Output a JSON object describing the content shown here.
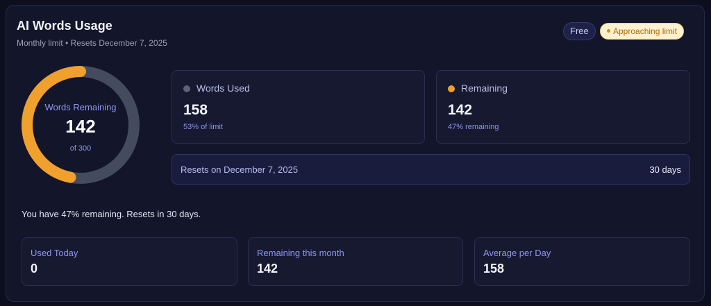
{
  "header": {
    "title": "AI Words Usage",
    "subtitle": "Monthly limit • Resets December 7, 2025",
    "plan_badge": "Free",
    "status_badge": "Approaching limit"
  },
  "ring": {
    "label": "Words Remaining",
    "value": "142",
    "of_text": "of 300",
    "remaining_fraction": 0.47,
    "remaining_color": "#f0a02c",
    "used_color": "#454b5f"
  },
  "words_used": {
    "label": "Words Used",
    "value": "158",
    "hint": "53% of limit",
    "dot_color": "#5d6376"
  },
  "remaining": {
    "label": "Remaining",
    "value": "142",
    "hint": "47% remaining",
    "dot_color": "#f0a02c"
  },
  "reset": {
    "label": "Resets on December 7, 2025",
    "days": "30 days"
  },
  "summary": "You have 47% remaining. Resets in 30 days.",
  "stats": {
    "today": {
      "label": "Used Today",
      "value": "0"
    },
    "month": {
      "label": "Remaining this month",
      "value": "142"
    },
    "average": {
      "label": "Average per Day",
      "value": "158"
    }
  }
}
